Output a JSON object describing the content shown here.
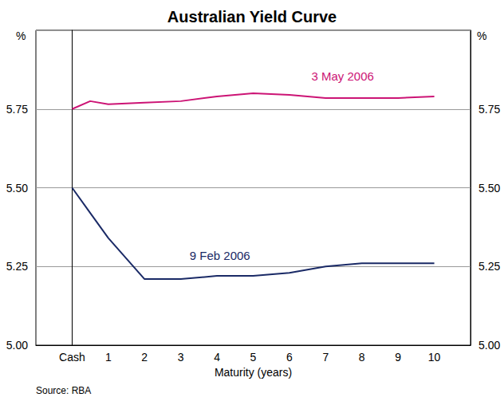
{
  "chart_data": {
    "type": "line",
    "title": "Australian Yield Curve",
    "xlabel": "Maturity (years)",
    "ylabel": "%",
    "y2label": "%",
    "source": "Source: RBA",
    "x": [
      0,
      0.5,
      1,
      2,
      3,
      4,
      5,
      6,
      7,
      8,
      9,
      10
    ],
    "series": [
      {
        "color": "#cc1475",
        "values": [
          5.75,
          5.775,
          5.765,
          5.77,
          5.775,
          5.79,
          5.8,
          5.795,
          5.785,
          5.785,
          5.785,
          5.79
        ]
      },
      {
        "color": "#1a2a66",
        "values": [
          5.5,
          5.42,
          5.34,
          5.21,
          5.21,
          5.22,
          5.22,
          5.23,
          5.25,
          5.26,
          5.26,
          5.26
        ]
      }
    ],
    "annotations": [
      {
        "text": "3 May 2006",
        "x": 7.47,
        "y": 5.855,
        "color": "#cc1475"
      },
      {
        "text": "9 Feb 2006",
        "x": 4.08,
        "y": 5.285,
        "color": "#1a2a66"
      }
    ],
    "xlim": [
      -1,
      11
    ],
    "xticks": [
      {
        "value": 0,
        "label": "Cash"
      },
      1,
      2,
      3,
      4,
      5,
      6,
      7,
      8,
      9,
      10
    ],
    "ylim": [
      5,
      6
    ],
    "yticks": [
      {
        "value": 5,
        "label": "5.00"
      },
      {
        "value": 5.25,
        "label": "5.25"
      },
      {
        "value": 5.5,
        "label": "5.50"
      },
      {
        "value": 5.75,
        "label": "5.75"
      }
    ],
    "y2lim": [
      5,
      6
    ],
    "y2ticks": [
      {
        "value": 5,
        "label": "5.00"
      },
      {
        "value": 5.25,
        "label": "5.25"
      },
      {
        "value": 5.5,
        "label": "5.50"
      },
      {
        "value": 5.75,
        "label": "5.75"
      }
    ],
    "grid": true
  }
}
